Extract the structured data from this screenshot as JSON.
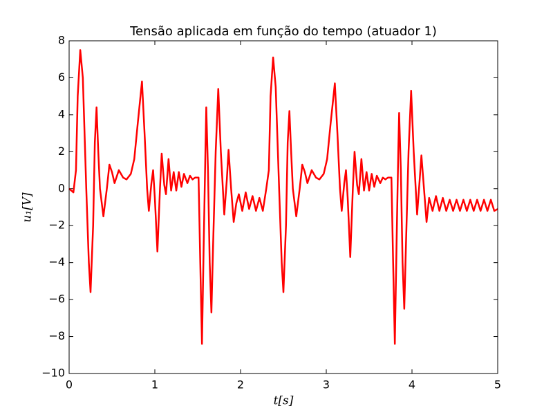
{
  "chart_data": {
    "type": "line",
    "title": "Tensão aplicada em função do tempo (atuador 1)",
    "x_label": "t[s]",
    "y_label": "u₁[V]",
    "xlim": [
      0,
      5
    ],
    "ylim": [
      -10,
      8
    ],
    "xticks": [
      0,
      1,
      2,
      3,
      4,
      5
    ],
    "yticks": [
      {
        "value": -10,
        "label": "−10"
      },
      {
        "value": -8,
        "label": "−8"
      },
      {
        "value": -6,
        "label": "−6"
      },
      {
        "value": -4,
        "label": "−4"
      },
      {
        "value": -2,
        "label": "−2"
      },
      0,
      2,
      4,
      6,
      8
    ],
    "grid": false,
    "x": [
      0,
      0.05,
      0.08,
      0.1,
      0.13,
      0.16,
      0.2,
      0.23,
      0.25,
      0.28,
      0.3,
      0.32,
      0.34,
      0.36,
      0.4,
      0.44,
      0.47,
      0.5,
      0.53,
      0.58,
      0.63,
      0.67,
      0.72,
      0.76,
      0.8,
      0.85,
      0.88,
      0.91,
      0.93,
      0.96,
      0.98,
      1.0,
      1.03,
      1.06,
      1.08,
      1.11,
      1.13,
      1.16,
      1.19,
      1.22,
      1.25,
      1.28,
      1.31,
      1.34,
      1.38,
      1.41,
      1.44,
      1.47,
      1.51,
      1.53,
      1.55,
      1.57,
      1.59,
      1.6,
      1.62,
      1.64,
      1.66,
      1.68,
      1.71,
      1.74,
      1.77,
      1.81,
      1.84,
      1.86,
      1.89,
      1.92,
      1.95,
      1.98,
      2.02,
      2.06,
      2.1,
      2.14,
      2.18,
      2.22,
      2.26,
      2.3,
      2.33,
      2.35,
      2.38,
      2.41,
      2.45,
      2.48,
      2.5,
      2.53,
      2.55,
      2.57,
      2.59,
      2.61,
      2.65,
      2.69,
      2.72,
      2.75,
      2.78,
      2.83,
      2.88,
      2.92,
      2.97,
      3.01,
      3.05,
      3.1,
      3.13,
      3.16,
      3.18,
      3.21,
      3.23,
      3.25,
      3.28,
      3.31,
      3.33,
      3.36,
      3.38,
      3.41,
      3.44,
      3.47,
      3.5,
      3.53,
      3.56,
      3.59,
      3.63,
      3.66,
      3.69,
      3.72,
      3.76,
      3.78,
      3.8,
      3.82,
      3.84,
      3.85,
      3.87,
      3.89,
      3.91,
      3.93,
      3.96,
      3.99,
      4.02,
      4.06,
      4.09,
      4.11,
      4.14,
      4.17,
      4.2,
      4.24,
      4.28,
      4.32,
      4.36,
      4.4,
      4.44,
      4.48,
      4.52,
      4.56,
      4.6,
      4.64,
      4.68,
      4.72,
      4.76,
      4.8,
      4.84,
      4.88,
      4.92,
      4.96,
      5.0
    ],
    "series": [
      {
        "color": "#ff0000",
        "values": [
          0,
          -0.2,
          1,
          5,
          7.5,
          6,
          0,
          -4,
          -5.6,
          -2,
          2.5,
          4.4,
          2,
          0,
          -1.5,
          0,
          1.3,
          0.9,
          0.3,
          1.0,
          0.6,
          0.5,
          0.8,
          1.6,
          3.5,
          5.8,
          3,
          0,
          -1.2,
          0.3,
          1.0,
          -0.5,
          -3.4,
          0,
          1.9,
          0.2,
          -0.3,
          1.6,
          -0.1,
          0.9,
          -0.1,
          0.9,
          0.1,
          0.8,
          0.3,
          0.7,
          0.5,
          0.6,
          0.6,
          -4,
          -8.4,
          -3,
          2,
          4.4,
          1,
          -4,
          -6.7,
          -3,
          2,
          5.4,
          2,
          -1.4,
          0.5,
          2.1,
          0,
          -1.8,
          -0.8,
          -0.3,
          -1.2,
          -0.2,
          -1.1,
          -0.4,
          -1.2,
          -0.5,
          -1.2,
          0,
          1,
          5,
          7.1,
          5.5,
          0,
          -4,
          -5.6,
          -2,
          2.5,
          4.2,
          2,
          0,
          -1.5,
          0,
          1.3,
          0.9,
          0.3,
          1.0,
          0.6,
          0.5,
          0.8,
          1.6,
          3.5,
          5.7,
          3,
          0,
          -1.2,
          0.3,
          1.0,
          -0.5,
          -3.7,
          0,
          2.0,
          0.2,
          -0.3,
          1.6,
          -0.1,
          0.9,
          -0.1,
          0.8,
          0.1,
          0.7,
          0.3,
          0.6,
          0.5,
          0.6,
          0.6,
          -4,
          -8.4,
          -3,
          2,
          4.1,
          1,
          -4,
          -6.5,
          -3,
          2,
          5.3,
          2,
          -1.4,
          0.5,
          1.8,
          0,
          -1.8,
          -0.5,
          -1.2,
          -0.4,
          -1.2,
          -0.5,
          -1.2,
          -0.6,
          -1.2,
          -0.6,
          -1.2,
          -0.6,
          -1.2,
          -0.6,
          -1.2,
          -0.6,
          -1.2,
          -0.6,
          -1.2,
          -0.6,
          -1.2,
          -1.1
        ]
      }
    ]
  }
}
